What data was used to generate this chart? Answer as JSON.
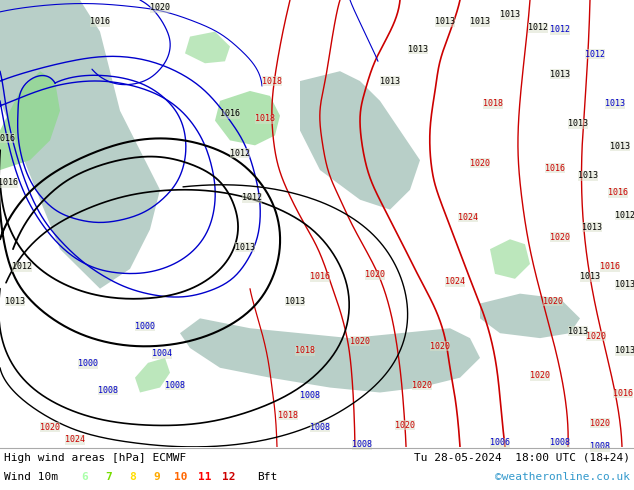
{
  "title_left": "High wind areas [hPa] ECMWF",
  "title_right": "Tu 28-05-2024  18:00 UTC (18+24)",
  "legend_label": "Wind 10m",
  "bft_numbers": [
    "6",
    "7",
    "8",
    "9",
    "10",
    "11",
    "12"
  ],
  "bft_colors": [
    "#aaffaa",
    "#77dd00",
    "#ffdd00",
    "#ffaa00",
    "#ff6600",
    "#ff0000",
    "#cc0000"
  ],
  "watermark": "©weatheronline.co.uk",
  "land_color": "#d8dfc8",
  "sea_color": "#b8cfc8",
  "green_wind_color": "#90d890",
  "bottom_bar_color": "#ffffff",
  "fig_width": 6.34,
  "fig_height": 4.9,
  "bottom_text_color": "#000000",
  "watermark_color": "#3399cc",
  "red_isobar_color": "#cc0000",
  "blue_isobar_color": "#0000cc",
  "black_isobar_color": "#000000"
}
